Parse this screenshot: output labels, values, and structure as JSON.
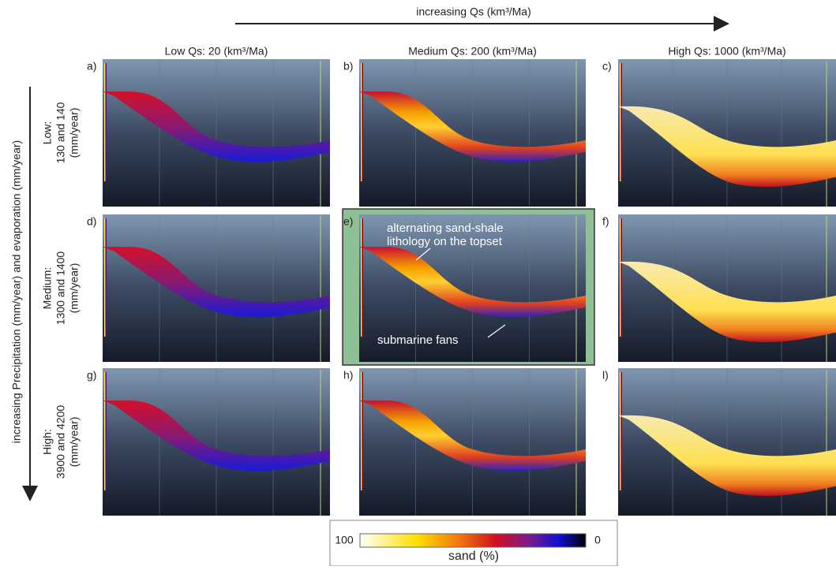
{
  "top_axis": "increasing Qs (km³/Ma)",
  "side_axis": "increasing Precipitation (mm/year) and evaporation (mm/year)",
  "columns": [
    "Low Qs: 20 (km³/Ma)",
    "Medium Qs: 200 (km³/Ma)",
    "High Qs: 1000 (km³/Ma)"
  ],
  "rows": [
    [
      "Low:",
      "130 and 140",
      "(mm/year)"
    ],
    [
      "Medium:",
      "1300 and 1400",
      "(mm/year)"
    ],
    [
      "High:",
      "3900 and 4200",
      "(mm/year)"
    ]
  ],
  "panels": [
    "a)",
    "b)",
    "c)",
    "d)",
    "e)",
    "f)",
    "g)",
    "h)",
    "l)"
  ],
  "annotations": {
    "topset": [
      "alternating sand-shale",
      "lithology on the topset"
    ],
    "fans": "submarine fans"
  },
  "colorbar": {
    "title": "sand (%)",
    "max": 100,
    "min": 0
  }
}
